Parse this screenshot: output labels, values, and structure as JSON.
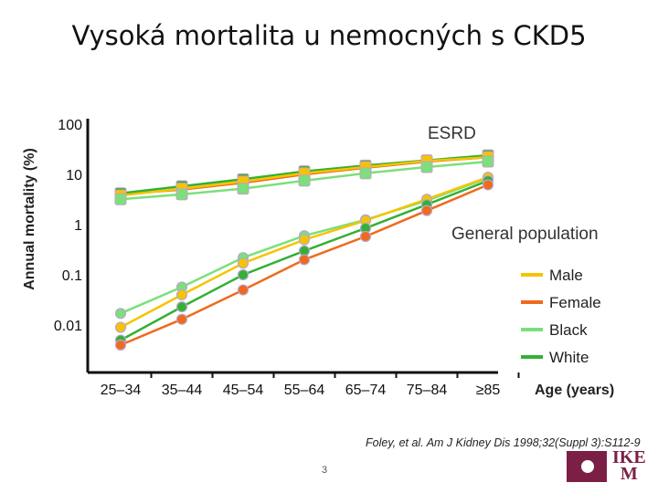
{
  "slide": {
    "title": "Vysoká mortalita u nemocných s CKD5",
    "page_number": "3",
    "citation": "Foley, et al. Am J Kidney Dis 1998;32(Suppl 3):S112-9",
    "logo_text": [
      "IKE",
      "M"
    ]
  },
  "chart_data": {
    "type": "line",
    "y_scale": "log",
    "ylabel": "Annual mortality (%)",
    "xlabel": "Age (years)",
    "categories": [
      "25–34",
      "35–44",
      "45–54",
      "55–64",
      "65–74",
      "75–84",
      "≥85"
    ],
    "y_ticks": [
      100,
      10,
      1,
      0.1,
      0.01
    ],
    "y_tick_labels": [
      "100",
      "10",
      "1",
      "0.1",
      "0.01"
    ],
    "ylim": [
      0.002,
      100
    ],
    "annotations": [
      "ESRD",
      "General population"
    ],
    "legend_position": "right",
    "legend": [
      "Male",
      "Female",
      "Black",
      "White"
    ],
    "colors": {
      "Male": "#f5c400",
      "Female": "#ef6a1e",
      "Black": "#7be07b",
      "White": "#34b034"
    },
    "groups": [
      {
        "name": "ESRD",
        "series": [
          {
            "name": "Female",
            "values": [
              4,
              5,
              6.8,
              10,
              13.5,
              18,
              22
            ]
          },
          {
            "name": "White",
            "values": [
              4.2,
              5.8,
              8,
              11.5,
              15,
              19,
              24
            ]
          },
          {
            "name": "Male",
            "values": [
              3.8,
              5.2,
              7.2,
              10.5,
              14,
              18.5,
              22
            ]
          },
          {
            "name": "Black",
            "values": [
              3.2,
              4,
              5.2,
              7.5,
              10.5,
              14,
              18
            ]
          }
        ]
      },
      {
        "name": "General population",
        "series": [
          {
            "name": "Black",
            "values": [
              0.017,
              0.057,
              0.22,
              0.6,
              1.25,
              3.0,
              8.5
            ]
          },
          {
            "name": "Male",
            "values": [
              0.009,
              0.04,
              0.17,
              0.5,
              1.2,
              3.2,
              8.8
            ]
          },
          {
            "name": "White",
            "values": [
              0.005,
              0.023,
              0.1,
              0.3,
              0.85,
              2.5,
              7.5
            ]
          },
          {
            "name": "Female",
            "values": [
              0.004,
              0.013,
              0.05,
              0.2,
              0.58,
              1.9,
              6.2
            ]
          }
        ]
      }
    ]
  }
}
